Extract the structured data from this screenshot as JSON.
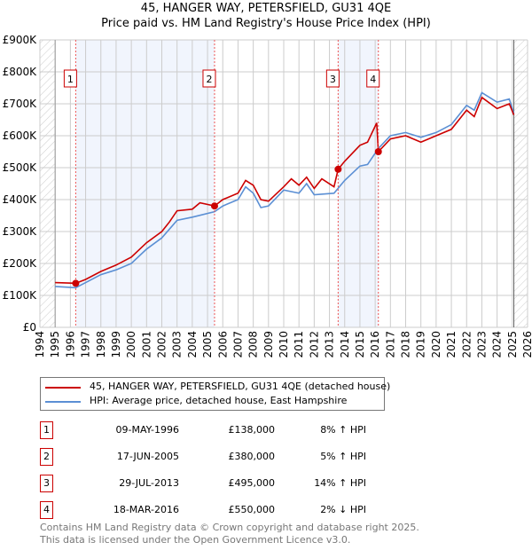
{
  "title": "45, HANGER WAY, PETERSFIELD, GU31 4QE",
  "subtitle": "Price paid vs. HM Land Registry's House Price Index (HPI)",
  "chart_data": {
    "type": "line",
    "title": "45, HANGER WAY, PETERSFIELD, GU31 4QE",
    "xlim": [
      1994,
      2026
    ],
    "ylim": [
      0,
      900000
    ],
    "x_ticks": [
      "1994",
      "1995",
      "1996",
      "1997",
      "1998",
      "1999",
      "2000",
      "2001",
      "2002",
      "2003",
      "2004",
      "2005",
      "2006",
      "2007",
      "2008",
      "2009",
      "2010",
      "2011",
      "2012",
      "2013",
      "2014",
      "2015",
      "2016",
      "2017",
      "2018",
      "2019",
      "2020",
      "2021",
      "2022",
      "2023",
      "2024",
      "2025",
      "2026"
    ],
    "y_ticks": [
      "£0",
      "£100K",
      "£200K",
      "£300K",
      "£400K",
      "£500K",
      "£600K",
      "£700K",
      "£800K",
      "£900K"
    ],
    "grid": true,
    "legend_placement": "below",
    "series": [
      {
        "name": "45, HANGER WAY, PETERSFIELD, GU31 4QE (detached house)",
        "color": "#cc0000",
        "x": [
          1995,
          1996.35,
          1997,
          1998,
          1999,
          2000,
          2001,
          2002,
          2002.5,
          2003,
          2004,
          2004.5,
          2005.46,
          2006,
          2007,
          2007.5,
          2008,
          2008.5,
          2009,
          2010,
          2010.5,
          2011,
          2011.5,
          2012,
          2012.5,
          2013.3,
          2013.57,
          2014,
          2015,
          2015.5,
          2016.1,
          2016.21,
          2017,
          2018,
          2019,
          2020,
          2021,
          2022,
          2022.5,
          2023,
          2024,
          2024.8,
          2025.1
        ],
        "y": [
          140,
          138,
          150,
          175,
          195,
          220,
          265,
          300,
          330,
          365,
          370,
          390,
          380,
          400,
          420,
          460,
          445,
          400,
          395,
          440,
          465,
          445,
          470,
          435,
          465,
          440,
          495,
          520,
          570,
          580,
          640,
          550,
          590,
          600,
          580,
          600,
          620,
          680,
          660,
          720,
          685,
          700,
          665
        ]
      },
      {
        "name": "HPI: Average price, detached house, East Hampshire",
        "color": "#5b8fd4",
        "x": [
          1995,
          1996.35,
          1997,
          1998,
          1999,
          2000,
          2001,
          2002,
          2003,
          2004,
          2005.46,
          2006,
          2007,
          2007.5,
          2008,
          2008.5,
          2009,
          2010,
          2011,
          2011.5,
          2012,
          2013.3,
          2014,
          2015,
          2015.5,
          2016.21,
          2017,
          2018,
          2019,
          2020,
          2021,
          2022,
          2022.5,
          2023,
          2024,
          2024.8,
          2025.1
        ],
        "y": [
          128,
          124,
          140,
          165,
          180,
          200,
          245,
          280,
          335,
          345,
          362,
          380,
          400,
          440,
          420,
          375,
          380,
          430,
          420,
          450,
          415,
          420,
          460,
          505,
          510,
          560,
          600,
          610,
          595,
          610,
          635,
          695,
          680,
          735,
          705,
          715,
          670
        ]
      }
    ],
    "y_units": "thousands GBP",
    "sales": [
      {
        "label": "1",
        "x": 1996.35,
        "y": 138
      },
      {
        "label": "2",
        "x": 2005.46,
        "y": 380
      },
      {
        "label": "3",
        "x": 2013.57,
        "y": 495
      },
      {
        "label": "4",
        "x": 2016.21,
        "y": 550
      }
    ],
    "shaded_spans": [
      [
        1996.35,
        2005.46
      ],
      [
        2013.57,
        2016.21
      ]
    ]
  },
  "legend": {
    "property": "45, HANGER WAY, PETERSFIELD, GU31 4QE (detached house)",
    "hpi": "HPI: Average price, detached house, East Hampshire"
  },
  "transactions": [
    {
      "num": "1",
      "date": "09-MAY-1996",
      "price": "£138,000",
      "hpi": "8% ↑ HPI"
    },
    {
      "num": "2",
      "date": "17-JUN-2005",
      "price": "£380,000",
      "hpi": "5% ↑ HPI"
    },
    {
      "num": "3",
      "date": "29-JUL-2013",
      "price": "£495,000",
      "hpi": "14% ↑ HPI"
    },
    {
      "num": "4",
      "date": "18-MAR-2016",
      "price": "£550,000",
      "hpi": "2% ↓ HPI"
    }
  ],
  "footer": {
    "line1": "Contains HM Land Registry data © Crown copyright and database right 2025.",
    "line2": "This data is licensed under the Open Government Licence v3.0."
  }
}
